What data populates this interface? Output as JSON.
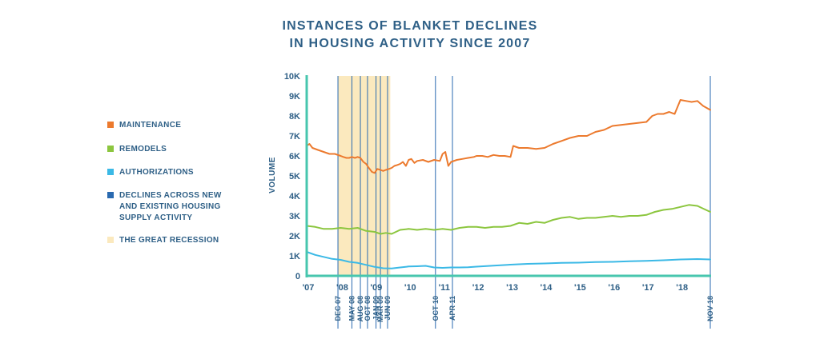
{
  "chart_data": {
    "type": "line",
    "title": "INSTANCES OF BLANKET DECLINES\nIN HOUSING ACTIVITY SINCE 2007",
    "title_lines": [
      "INSTANCES OF BLANKET DECLINES",
      "IN HOUSING ACTIVITY SINCE 2007"
    ],
    "ylabel": "VOLUME",
    "xlabel": "",
    "ylim": [
      0,
      10000
    ],
    "xlim": [
      2007.0,
      2018.88
    ],
    "y_ticks": [
      0,
      1000,
      2000,
      3000,
      4000,
      5000,
      6000,
      7000,
      8000,
      9000,
      10000
    ],
    "y_tick_labels": [
      "0",
      "1K",
      "2K",
      "3K",
      "4K",
      "5K",
      "6K",
      "7K",
      "8K",
      "9K",
      "10K"
    ],
    "x_ticks": [
      2007.0,
      2008.0,
      2009.0,
      2010.0,
      2011.0,
      2012.0,
      2013.0,
      2014.0,
      2015.0,
      2016.0,
      2017.0,
      2018.0
    ],
    "x_tick_labels": [
      "'07",
      "'08",
      "'09",
      "'10",
      "'11",
      "'12",
      "'13",
      "'14",
      "'15",
      "'16",
      "'17",
      "'18"
    ],
    "recession": {
      "label": "THE GREAT RECESSION",
      "start": 2007.92,
      "end": 2009.46
    },
    "decline_markers": [
      {
        "label": "DEC 07",
        "x": 2007.92
      },
      {
        "label": "MAY 08",
        "x": 2008.33
      },
      {
        "label": "AUG 08",
        "x": 2008.58
      },
      {
        "label": "OCT 08",
        "x": 2008.79
      },
      {
        "label": "JAN 09",
        "x": 2009.04
      },
      {
        "label": "MAR 09",
        "x": 2009.17
      },
      {
        "label": "JUN 09",
        "x": 2009.38
      },
      {
        "label": "OCT 10",
        "x": 2010.79
      },
      {
        "label": "APR 11",
        "x": 2011.29
      },
      {
        "label": "NOV 18",
        "x": 2018.88
      }
    ],
    "series": [
      {
        "name": "MAINTENANCE",
        "color": "#ec7a2e",
        "x": [
          2007.0,
          2007.08,
          2007.17,
          2007.33,
          2007.5,
          2007.67,
          2007.83,
          2008.0,
          2008.08,
          2008.17,
          2008.25,
          2008.33,
          2008.42,
          2008.5,
          2008.58,
          2008.67,
          2008.75,
          2008.83,
          2008.92,
          2009.0,
          2009.08,
          2009.17,
          2009.25,
          2009.33,
          2009.42,
          2009.5,
          2009.58,
          2009.67,
          2009.75,
          2009.83,
          2009.92,
          2010.0,
          2010.08,
          2010.17,
          2010.25,
          2010.42,
          2010.58,
          2010.75,
          2010.92,
          2011.0,
          2011.08,
          2011.17,
          2011.25,
          2011.42,
          2011.58,
          2011.75,
          2011.92,
          2012.0,
          2012.17,
          2012.33,
          2012.5,
          2012.67,
          2012.83,
          2013.0,
          2013.08,
          2013.25,
          2013.5,
          2013.75,
          2014.0,
          2014.25,
          2014.5,
          2014.75,
          2015.0,
          2015.25,
          2015.5,
          2015.75,
          2016.0,
          2016.25,
          2016.5,
          2016.75,
          2017.0,
          2017.17,
          2017.33,
          2017.5,
          2017.67,
          2017.75,
          2017.83,
          2018.0,
          2018.17,
          2018.33,
          2018.5,
          2018.67,
          2018.88
        ],
        "y": [
          6500,
          6600,
          6400,
          6300,
          6200,
          6100,
          6100,
          6000,
          5950,
          5900,
          5900,
          5950,
          5900,
          5950,
          5900,
          5700,
          5600,
          5400,
          5200,
          5150,
          5350,
          5300,
          5250,
          5300,
          5350,
          5400,
          5500,
          5550,
          5600,
          5700,
          5500,
          5800,
          5850,
          5650,
          5750,
          5800,
          5700,
          5800,
          5750,
          6100,
          6200,
          5500,
          5700,
          5800,
          5850,
          5900,
          5950,
          6000,
          6000,
          5950,
          6050,
          6000,
          6000,
          5950,
          6500,
          6400,
          6400,
          6350,
          6400,
          6600,
          6750,
          6900,
          7000,
          7000,
          7200,
          7300,
          7500,
          7550,
          7600,
          7650,
          7700,
          8000,
          8100,
          8100,
          8200,
          8150,
          8100,
          8800,
          8750,
          8700,
          8750,
          8500,
          8300
        ]
      },
      {
        "name": "REMODELS",
        "color": "#8cc63f",
        "x": [
          2007.0,
          2007.25,
          2007.5,
          2007.75,
          2008.0,
          2008.25,
          2008.5,
          2008.75,
          2009.0,
          2009.17,
          2009.33,
          2009.5,
          2009.75,
          2010.0,
          2010.25,
          2010.5,
          2010.75,
          2011.0,
          2011.25,
          2011.5,
          2011.75,
          2012.0,
          2012.25,
          2012.5,
          2012.75,
          2013.0,
          2013.25,
          2013.5,
          2013.75,
          2014.0,
          2014.25,
          2014.5,
          2014.75,
          2015.0,
          2015.25,
          2015.5,
          2015.75,
          2016.0,
          2016.25,
          2016.5,
          2016.75,
          2017.0,
          2017.25,
          2017.5,
          2017.75,
          2018.0,
          2018.25,
          2018.5,
          2018.75,
          2018.88
        ],
        "y": [
          2500,
          2450,
          2350,
          2350,
          2400,
          2350,
          2400,
          2250,
          2200,
          2100,
          2150,
          2100,
          2300,
          2350,
          2300,
          2350,
          2300,
          2350,
          2300,
          2400,
          2450,
          2450,
          2400,
          2450,
          2450,
          2500,
          2650,
          2600,
          2700,
          2650,
          2800,
          2900,
          2950,
          2850,
          2900,
          2900,
          2950,
          3000,
          2950,
          3000,
          3000,
          3050,
          3200,
          3300,
          3350,
          3450,
          3550,
          3500,
          3300,
          3200
        ]
      },
      {
        "name": "AUTHORIZATIONS",
        "color": "#3bb9e6",
        "x": [
          2007.0,
          2007.25,
          2007.5,
          2007.75,
          2008.0,
          2008.25,
          2008.5,
          2008.75,
          2009.0,
          2009.25,
          2009.5,
          2009.75,
          2010.0,
          2010.25,
          2010.5,
          2010.75,
          2011.0,
          2011.25,
          2011.5,
          2011.75,
          2012.0,
          2012.5,
          2013.0,
          2013.5,
          2014.0,
          2014.5,
          2015.0,
          2015.5,
          2016.0,
          2016.5,
          2017.0,
          2017.5,
          2018.0,
          2018.5,
          2018.88
        ],
        "y": [
          1200,
          1050,
          950,
          850,
          800,
          700,
          650,
          550,
          450,
          380,
          370,
          420,
          470,
          480,
          500,
          420,
          400,
          420,
          420,
          430,
          460,
          510,
          560,
          600,
          620,
          650,
          660,
          690,
          700,
          730,
          750,
          780,
          820,
          840,
          820
        ]
      },
      {
        "name": "DECLINES ACROSS NEW\nAND EXISTING HOUSING\nSUPPLY ACTIVITY",
        "color": "#2a6ab0"
      },
      {
        "name": "THE GREAT RECESSION",
        "color": "#fbe9be"
      }
    ],
    "legend_lines": [
      [
        "MAINTENANCE"
      ],
      [
        "REMODELS"
      ],
      [
        "AUTHORIZATIONS"
      ],
      [
        "DECLINES ACROSS NEW",
        "AND EXISTING HOUSING",
        "SUPPLY ACTIVITY"
      ],
      [
        "THE GREAT RECESSION"
      ]
    ],
    "colors": {
      "axis": "#47c6ae",
      "text": "#2e5f86"
    },
    "grid": false,
    "legend_position": "left"
  }
}
